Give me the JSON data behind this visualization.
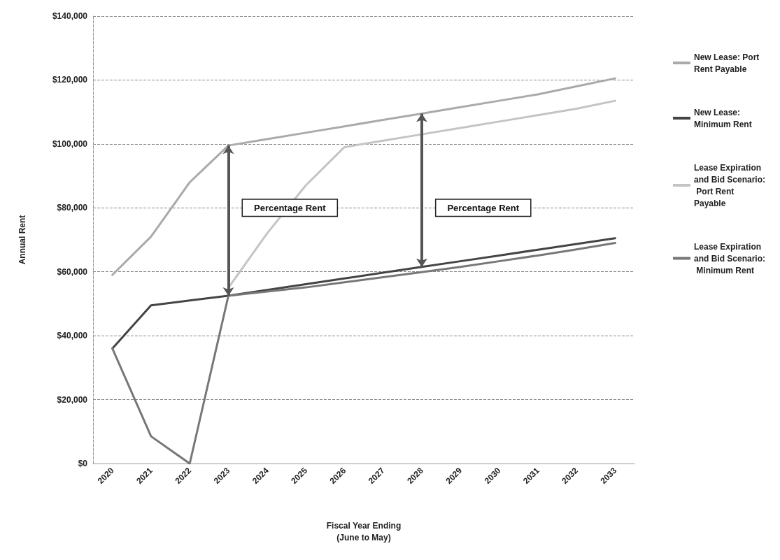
{
  "chart_data": {
    "type": "line",
    "xlabel": "Fiscal Year Ending\n(June to May)",
    "ylabel": "Annual Rent",
    "categories": [
      "2020",
      "2021",
      "2022",
      "2023",
      "2024",
      "2025",
      "2026",
      "2027",
      "2028",
      "2029",
      "2030",
      "2031",
      "2032",
      "2033"
    ],
    "series": [
      {
        "name": "New Lease: Port Rent Payable",
        "color": "#aaaaaa",
        "values": [
          59000,
          71000,
          88000,
          99500,
          101500,
          103500,
          105500,
          107500,
          109500,
          111500,
          113500,
          115500,
          118000,
          120500
        ]
      },
      {
        "name": "New Lease: Minimum Rent",
        "color": "#444444",
        "values": [
          36000,
          49500,
          51000,
          52500,
          54300,
          56100,
          57900,
          59700,
          61500,
          63300,
          65100,
          66900,
          68700,
          70500
        ]
      },
      {
        "name": "Lease Expiration and Bid Scenario: Port Rent Payable",
        "color": "#c4c4c4",
        "values": [
          null,
          null,
          null,
          55000,
          72000,
          87000,
          99000,
          101000,
          103000,
          105000,
          107000,
          109000,
          111000,
          113500
        ]
      },
      {
        "name": "Lease Expiration and Bid Scenario: Minimum Rent",
        "color": "#777777",
        "values": [
          36000,
          8500,
          0,
          52500,
          53800,
          55100,
          56700,
          58300,
          59900,
          61500,
          63300,
          65100,
          67000,
          69000
        ]
      }
    ],
    "annotations": [
      "Percentage Rent",
      "Percentage Rent"
    ],
    "ylim": [
      0,
      140000
    ],
    "yticks": [
      {
        "value": 0,
        "label": "$0"
      },
      {
        "value": 20000,
        "label": "$20,000"
      },
      {
        "value": 40000,
        "label": "$40,000"
      },
      {
        "value": 60000,
        "label": "$60,000"
      },
      {
        "value": 80000,
        "label": "$80,000"
      },
      {
        "value": 100000,
        "label": "$100,000"
      },
      {
        "value": 120000,
        "label": "$120,000"
      },
      {
        "value": 140000,
        "label": "$140,000"
      }
    ],
    "grid": "y",
    "legend": "right",
    "marker": "none",
    "line_style": "solid"
  }
}
